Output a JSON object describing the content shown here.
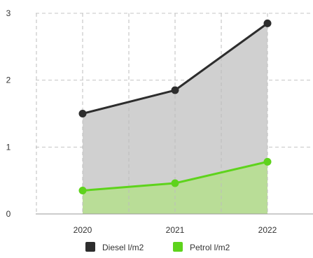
{
  "chart_data": {
    "type": "area",
    "categories": [
      "2020",
      "2021",
      "2022"
    ],
    "series": [
      {
        "name": "Diesel l/m2",
        "values": [
          1.5,
          1.85,
          2.85
        ],
        "color": "#2d2d2d",
        "fill": "#d0d0d0"
      },
      {
        "name": "Petrol l/m2",
        "values": [
          0.35,
          0.46,
          0.78
        ],
        "color": "#5ed31c",
        "fill": "#b9dd97"
      }
    ],
    "ylim": [
      0,
      3
    ],
    "yticks": [
      "0",
      "1",
      "2",
      "3"
    ],
    "grid": true,
    "legend": "bottom"
  }
}
